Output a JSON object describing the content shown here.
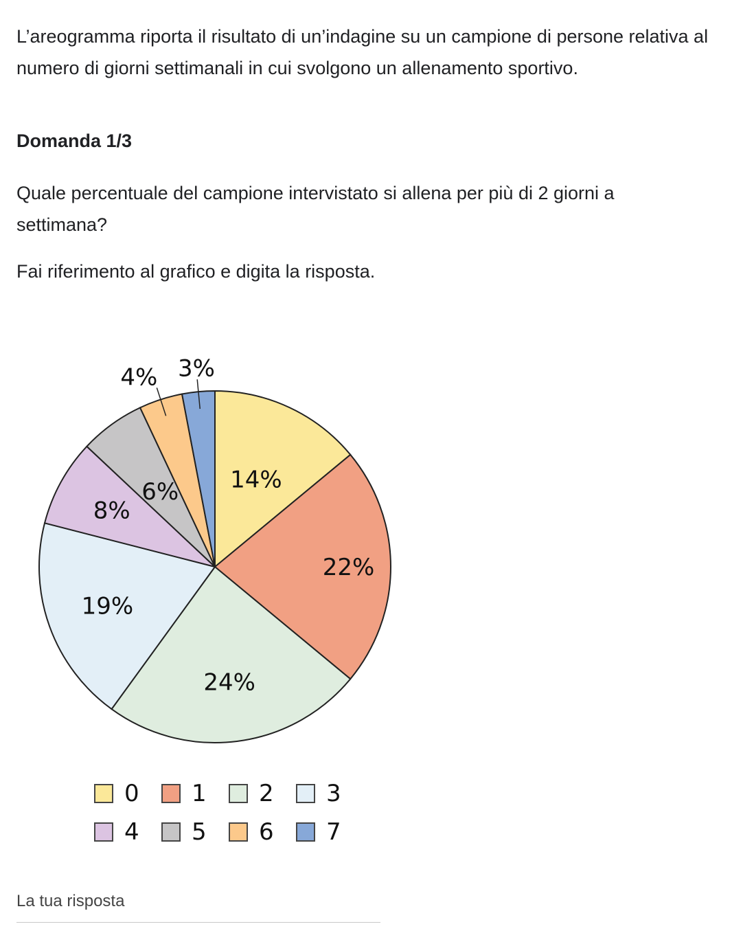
{
  "intro": "L’areogramma riporta il risultato di un’indagine su un campione di persone relativa al numero di giorni settimanali in cui svolgono un allenamento sportivo.",
  "heading": "Domanda 1/3",
  "question": "Quale percentuale del campione intervistato si allena per più di 2 giorni a settimana?",
  "instruction": "Fai riferimento al grafico e digita la risposta.",
  "chart_data": {
    "type": "pie",
    "categories": [
      "0",
      "1",
      "2",
      "3",
      "4",
      "5",
      "6",
      "7"
    ],
    "values": [
      14,
      22,
      24,
      19,
      8,
      6,
      4,
      3
    ],
    "labels": [
      "14%",
      "22%",
      "24%",
      "19%",
      "8%",
      "6%",
      "4%",
      "3%"
    ],
    "colors": [
      "#fbe899",
      "#f1a083",
      "#dfeddf",
      "#e3eff7",
      "#dcc4e2",
      "#c6c5c6",
      "#fcc98b",
      "#87a8d8"
    ],
    "legend_placement": "bottom"
  },
  "answer": {
    "label": "La tua risposta",
    "value": ""
  }
}
